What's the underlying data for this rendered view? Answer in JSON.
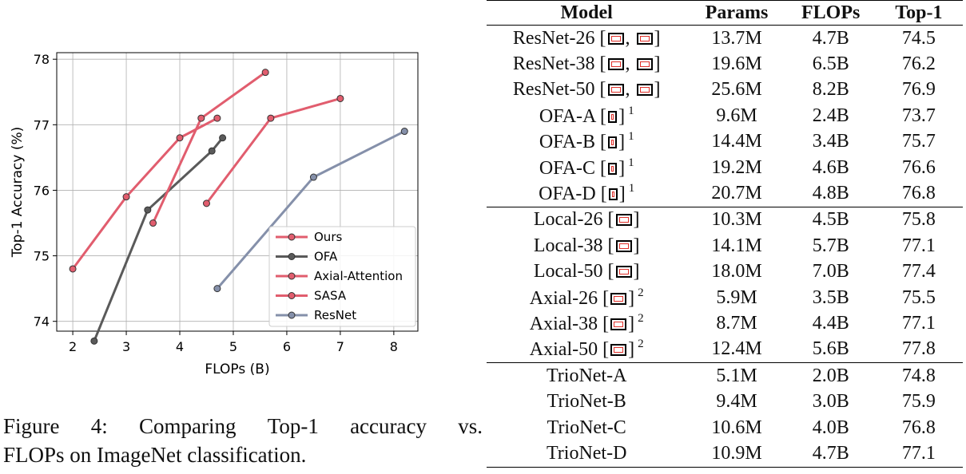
{
  "chart_data": {
    "type": "line",
    "xlabel": "FLOPs (B)",
    "ylabel": "Top-1 Accuracy (%)",
    "xlim": [
      1.7,
      8.45
    ],
    "ylim": [
      73.85,
      78.1
    ],
    "xticks": [
      2,
      3,
      4,
      5,
      6,
      7,
      8
    ],
    "yticks": [
      74,
      75,
      76,
      77,
      78
    ],
    "grid": true,
    "legend_position": "lower-right",
    "series": [
      {
        "name": "Ours",
        "color": "#e15d6e",
        "points": [
          [
            2.0,
            74.8
          ],
          [
            3.0,
            75.9
          ],
          [
            4.0,
            76.8
          ],
          [
            4.7,
            77.1
          ]
        ]
      },
      {
        "name": "OFA",
        "color": "#5a5a5a",
        "points": [
          [
            2.4,
            73.7
          ],
          [
            3.4,
            75.7
          ],
          [
            4.6,
            76.6
          ],
          [
            4.8,
            76.8
          ]
        ]
      },
      {
        "name": "Axial-Attention",
        "color": "#e15d6e",
        "points": [
          [
            3.5,
            75.5
          ],
          [
            4.4,
            77.1
          ],
          [
            5.6,
            77.8
          ]
        ]
      },
      {
        "name": "SASA",
        "color": "#e15d6e",
        "points": [
          [
            4.5,
            75.8
          ],
          [
            5.7,
            77.1
          ],
          [
            7.0,
            77.4
          ]
        ]
      },
      {
        "name": "ResNet",
        "color": "#8590aa",
        "points": [
          [
            4.7,
            74.5
          ],
          [
            6.5,
            76.2
          ],
          [
            8.2,
            76.9
          ]
        ]
      }
    ]
  },
  "caption": {
    "line1": [
      "Figure",
      "4:",
      "Comparing",
      "Top-1",
      "accuracy",
      "vs."
    ],
    "line2": "FLOPs on ImageNet classification."
  },
  "table": {
    "headers": [
      "Model",
      "Params",
      "FLOPs",
      "Top-1"
    ],
    "groups": [
      [
        {
          "name": "ResNet-26 [",
          "refs": "boxpair",
          "suffix": "]",
          "params": "13.7M",
          "flops": "4.7B",
          "top1": "74.5"
        },
        {
          "name": "ResNet-38 [",
          "refs": "boxpair",
          "suffix": "]",
          "params": "19.6M",
          "flops": "6.5B",
          "top1": "76.2"
        },
        {
          "name": "ResNet-50 [",
          "refs": "boxpair",
          "suffix": "]",
          "params": "25.6M",
          "flops": "8.2B",
          "top1": "76.9"
        },
        {
          "name": "OFA-A [",
          "refs": "narrow",
          "suffix": "]",
          "sup": "1",
          "params": "9.6M",
          "flops": "2.4B",
          "top1": "73.7"
        },
        {
          "name": "OFA-B [",
          "refs": "narrow",
          "suffix": "]",
          "sup": "1",
          "params": "14.4M",
          "flops": "3.4B",
          "top1": "75.7"
        },
        {
          "name": "OFA-C [",
          "refs": "narrow",
          "suffix": "]",
          "sup": "1",
          "params": "19.2M",
          "flops": "4.6B",
          "top1": "76.6"
        },
        {
          "name": "OFA-D [",
          "refs": "narrow",
          "suffix": "]",
          "sup": "1",
          "params": "20.7M",
          "flops": "4.8B",
          "top1": "76.8"
        }
      ],
      [
        {
          "name": "Local-26 [",
          "refs": "single",
          "suffix": "]",
          "params": "10.3M",
          "flops": "4.5B",
          "top1": "75.8"
        },
        {
          "name": "Local-38 [",
          "refs": "single",
          "suffix": "]",
          "params": "14.1M",
          "flops": "5.7B",
          "top1": "77.1"
        },
        {
          "name": "Local-50 [",
          "refs": "single",
          "suffix": "]",
          "params": "18.0M",
          "flops": "7.0B",
          "top1": "77.4"
        },
        {
          "name": "Axial-26 [",
          "refs": "single",
          "suffix": "]",
          "sup": "2",
          "params": "5.9M",
          "flops": "3.5B",
          "top1": "75.5"
        },
        {
          "name": "Axial-38 [",
          "refs": "single",
          "suffix": "]",
          "sup": "2",
          "params": "8.7M",
          "flops": "4.4B",
          "top1": "77.1"
        },
        {
          "name": "Axial-50 [",
          "refs": "single",
          "suffix": "]",
          "sup": "2",
          "params": "12.4M",
          "flops": "5.6B",
          "top1": "77.8"
        }
      ],
      [
        {
          "name": "TrioNet-A",
          "refs": "",
          "suffix": "",
          "params": "5.1M",
          "flops": "2.0B",
          "top1": "74.8"
        },
        {
          "name": "TrioNet-B",
          "refs": "",
          "suffix": "",
          "params": "9.4M",
          "flops": "3.0B",
          "top1": "75.9"
        },
        {
          "name": "TrioNet-C",
          "refs": "",
          "suffix": "",
          "params": "10.6M",
          "flops": "4.0B",
          "top1": "76.8"
        },
        {
          "name": "TrioNet-D",
          "refs": "",
          "suffix": "",
          "params": "10.9M",
          "flops": "4.7B",
          "top1": "77.1"
        }
      ]
    ]
  }
}
